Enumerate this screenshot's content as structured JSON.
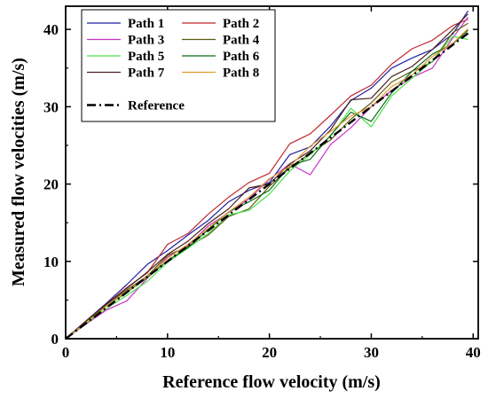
{
  "chart_data": {
    "type": "line",
    "xlabel": "Reference flow velocity (m/s)",
    "ylabel": "Measured flow velocities (m/s)",
    "xlim": [
      0,
      40.5
    ],
    "ylim": [
      0,
      43
    ],
    "xticks": [
      0,
      10,
      20,
      30,
      40
    ],
    "yticks": [
      0,
      10,
      20,
      30,
      40
    ],
    "grid": false,
    "legend_position": "top-left",
    "x": [
      0,
      2,
      4,
      6,
      8,
      10,
      12,
      14,
      16,
      18,
      20,
      22,
      24,
      26,
      28,
      30,
      32,
      34,
      36,
      38,
      39.5
    ],
    "series": [
      {
        "name": "Path 1",
        "color": "#1f1fa0",
        "values": [
          0,
          2.3,
          4.6,
          7.0,
          9.6,
          11.4,
          13.4,
          15.3,
          17.7,
          19.2,
          20.2,
          23.8,
          24.8,
          27.5,
          30.8,
          32.4,
          35.0,
          36.3,
          37.4,
          39.4,
          42.4
        ]
      },
      {
        "name": "Path 2",
        "color": "#c0282d",
        "values": [
          0,
          2.2,
          4.5,
          6.6,
          8.5,
          12.2,
          13.6,
          16.1,
          18.3,
          20.2,
          21.4,
          25.2,
          26.5,
          28.9,
          31.4,
          32.8,
          35.5,
          37.5,
          38.6,
          40.5,
          41.3
        ]
      },
      {
        "name": "Path 3",
        "color": "#c832c8",
        "values": [
          0,
          1.9,
          3.7,
          4.9,
          7.8,
          10.6,
          12.0,
          14.6,
          16.3,
          18.1,
          20.6,
          22.6,
          21.2,
          25.1,
          27.3,
          30.0,
          32.1,
          33.8,
          35.0,
          38.9,
          41.6
        ]
      },
      {
        "name": "Path 4",
        "color": "#5c5c10",
        "values": [
          0,
          2.1,
          4.4,
          6.3,
          8.1,
          10.8,
          11.9,
          13.4,
          15.8,
          16.8,
          19.7,
          22.1,
          24.0,
          25.7,
          28.4,
          30.5,
          33.2,
          34.6,
          35.8,
          39.6,
          40.8
        ]
      },
      {
        "name": "Path 5",
        "color": "#49e049",
        "values": [
          0,
          2.0,
          3.9,
          5.6,
          7.4,
          9.9,
          11.7,
          13.6,
          16.0,
          16.6,
          18.7,
          21.7,
          23.8,
          26.2,
          29.8,
          27.4,
          31.4,
          33.7,
          35.9,
          39.1,
          38.7
        ]
      },
      {
        "name": "Path 6",
        "color": "#0f6a18",
        "values": [
          0,
          2.2,
          4.2,
          6.0,
          7.9,
          10.1,
          11.8,
          14.1,
          16.4,
          17.7,
          19.2,
          22.4,
          23.2,
          26.3,
          29.3,
          28.1,
          31.8,
          34.6,
          36.8,
          38.1,
          39.9
        ]
      },
      {
        "name": "Path 7",
        "color": "#4a2020",
        "values": [
          0,
          2.3,
          4.5,
          6.5,
          8.6,
          10.9,
          12.6,
          14.9,
          16.8,
          19.5,
          20.0,
          22.6,
          24.3,
          27.0,
          30.9,
          31.1,
          33.9,
          35.2,
          37.4,
          40.0,
          42.0
        ]
      },
      {
        "name": "Path 8",
        "color": "#e39a30",
        "values": [
          0,
          2.1,
          4.2,
          6.1,
          8.0,
          10.4,
          12.2,
          14.3,
          16.4,
          18.3,
          20.7,
          22.3,
          24.9,
          26.8,
          28.8,
          30.0,
          32.6,
          34.1,
          36.5,
          38.2,
          40.1
        ]
      },
      {
        "name": "Reference",
        "color": "#000000",
        "dash": "dashdot",
        "values": [
          0,
          2.0,
          4.0,
          6.0,
          8.0,
          10.0,
          12.0,
          14.0,
          16.0,
          18.0,
          20.0,
          22.0,
          24.0,
          26.0,
          28.0,
          30.0,
          32.0,
          34.0,
          36.0,
          38.0,
          39.5
        ]
      }
    ]
  }
}
